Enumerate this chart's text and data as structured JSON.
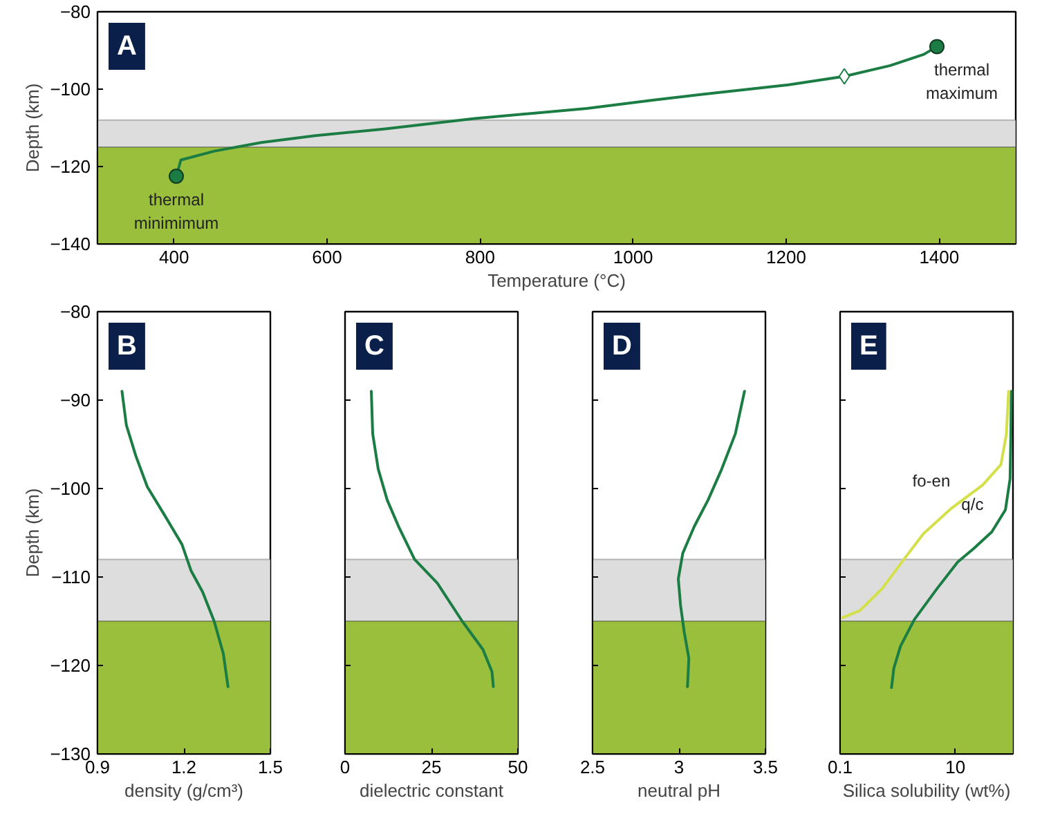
{
  "chart_data": [
    {
      "type": "line",
      "title": "A",
      "xlabel": "Temperature (°C)",
      "ylabel": "Depth (km)",
      "xlim": [
        300,
        1500
      ],
      "xticks": [
        400,
        600,
        800,
        1000,
        1200,
        1400
      ],
      "ylim": [
        -140,
        -80
      ],
      "yticks": [
        -140,
        -120,
        -100,
        -80
      ],
      "bands": [
        {
          "axis": "y",
          "from": -115,
          "to": -108,
          "color": "#dcdddc"
        },
        {
          "axis": "y",
          "from": -140,
          "to": -115,
          "color": "#99bf3d"
        }
      ],
      "series": [
        {
          "color": "#1b7d44",
          "x": [
            403,
            409,
            453,
            514,
            585,
            674,
            793,
            939,
            1027,
            1115,
            1203,
            1276,
            1336,
            1380,
            1397
          ],
          "values": [
            -122.5,
            -118.3,
            -116,
            -113.8,
            -112,
            -110.3,
            -107.6,
            -105,
            -102.8,
            -100.8,
            -98.9,
            -96.7,
            -93.9,
            -91,
            -89
          ]
        },
        {
          "type": "scatter",
          "marker": "circle",
          "color": "#1b7d44",
          "x": [
            403,
            1397
          ],
          "values": [
            -122.5,
            -89
          ]
        },
        {
          "type": "scatter",
          "marker": "diamond",
          "color": "#1b7d44",
          "x": [
            1276
          ],
          "values": [
            -96.7
          ]
        }
      ],
      "annotations": [
        {
          "text": "thermal\nminimimum",
          "x": 403,
          "y": -122.5
        },
        {
          "text": "thermal\nmaximum",
          "x": 1397,
          "y": -89
        }
      ]
    },
    {
      "type": "line",
      "title": "B",
      "xlabel": "density (g/cm³)",
      "ylabel": "Depth (km)",
      "xlim": [
        0.9,
        1.5
      ],
      "xticks": [
        0.9,
        1.2,
        1.5
      ],
      "ylim": [
        -130,
        -80
      ],
      "yticks": [
        -130,
        -120,
        -110,
        -100,
        -90,
        -80
      ],
      "bands": [
        {
          "axis": "y",
          "from": -115,
          "to": -108,
          "color": "#dcdddc"
        },
        {
          "axis": "y",
          "from": -130,
          "to": -115,
          "color": "#99bf3d"
        }
      ],
      "series": [
        {
          "color": "#1b7d44",
          "x": [
            0.985,
            1.0,
            1.033,
            1.073,
            1.129,
            1.193,
            1.225,
            1.265,
            1.305,
            1.337,
            1.353
          ],
          "values": [
            -89,
            -92.8,
            -96.3,
            -99.8,
            -102.8,
            -106.3,
            -109.3,
            -111.7,
            -115,
            -118.7,
            -122.4
          ]
        }
      ]
    },
    {
      "type": "line",
      "title": "C",
      "xlabel": "dielectric constant",
      "xlim": [
        0,
        50
      ],
      "xticks": [
        0,
        25,
        50
      ],
      "ylim": [
        -130,
        -80
      ],
      "yticks": [
        -130,
        -120,
        -110,
        -100,
        -90,
        -80
      ],
      "tick_labels": "x",
      "bands": [
        {
          "axis": "y",
          "from": -115,
          "to": -108,
          "color": "#dcdddc"
        },
        {
          "axis": "y",
          "from": -130,
          "to": -115,
          "color": "#99bf3d"
        }
      ],
      "series": [
        {
          "color": "#1b7d44",
          "x": [
            7.6,
            8.0,
            9.6,
            12.2,
            15.5,
            20.1,
            26.7,
            33.9,
            39.9,
            42.5,
            42.9
          ],
          "values": [
            -89,
            -93.8,
            -97.8,
            -101.3,
            -104.3,
            -108,
            -110.7,
            -115,
            -118.2,
            -120.7,
            -122.4
          ]
        }
      ]
    },
    {
      "type": "line",
      "title": "D",
      "xlabel": "neutral pH",
      "xlim": [
        2.5,
        3.5
      ],
      "xticks": [
        2.5,
        3.0,
        3.5
      ],
      "ylim": [
        -130,
        -80
      ],
      "yticks": [
        -130,
        -120,
        -110,
        -100,
        -90,
        -80
      ],
      "tick_labels": "x",
      "bands": [
        {
          "axis": "y",
          "from": -115,
          "to": -108,
          "color": "#dcdddc"
        },
        {
          "axis": "y",
          "from": -130,
          "to": -115,
          "color": "#99bf3d"
        }
      ],
      "series": [
        {
          "color": "#1b7d44",
          "x": [
            3.379,
            3.326,
            3.247,
            3.168,
            3.088,
            3.022,
            2.996,
            3.009,
            3.03,
            3.057,
            3.049
          ],
          "values": [
            -89,
            -93.8,
            -97.8,
            -101.3,
            -104.3,
            -107.3,
            -110.2,
            -113.2,
            -116.2,
            -119.2,
            -122.4
          ]
        }
      ]
    },
    {
      "type": "line",
      "title": "E",
      "xlabel": "Silica solubility (wt%)",
      "log": "x",
      "xlim": [
        0.1,
        100
      ],
      "xticks": [
        {
          "value": 0.1,
          "label": "0.1"
        },
        {
          "value": 10,
          "label": "10"
        }
      ],
      "ylim": [
        -130,
        -80
      ],
      "yticks": [
        -130,
        -120,
        -110,
        -100,
        -90,
        -80
      ],
      "tick_labels": "x",
      "bands": [
        {
          "axis": "y",
          "from": -115,
          "to": -108,
          "color": "#dcdddc"
        },
        {
          "axis": "y",
          "from": -130,
          "to": -115,
          "color": "#99bf3d"
        }
      ],
      "series": [
        {
          "color": "#1b7d44",
          "x": [
            93.8,
            92,
            89,
            74,
            42.9,
            20.7,
            11,
            4.83,
            1.95,
            1.12,
            0.857,
            0.78
          ],
          "values": [
            -89,
            -93.9,
            -98.9,
            -102.4,
            -104.9,
            -106.8,
            -108.3,
            -111.3,
            -114.8,
            -117.8,
            -120.3,
            -122.5
          ]
        },
        {
          "color": "#d4e04a",
          "x": [
            84,
            76.7,
            61.8,
            29.8,
            8.3,
            2.8,
            1.35,
            0.54,
            0.22,
            0.11
          ],
          "values": [
            -89,
            -93.9,
            -97.3,
            -99.6,
            -102.3,
            -105.1,
            -107.8,
            -111.3,
            -113.8,
            -114.6
          ]
        }
      ],
      "annotations": [
        {
          "text": "fo-en",
          "x": 8.3,
          "y": -102.3
        },
        {
          "text": "q/c",
          "x": 42.9,
          "y": -104.9
        }
      ]
    }
  ]
}
